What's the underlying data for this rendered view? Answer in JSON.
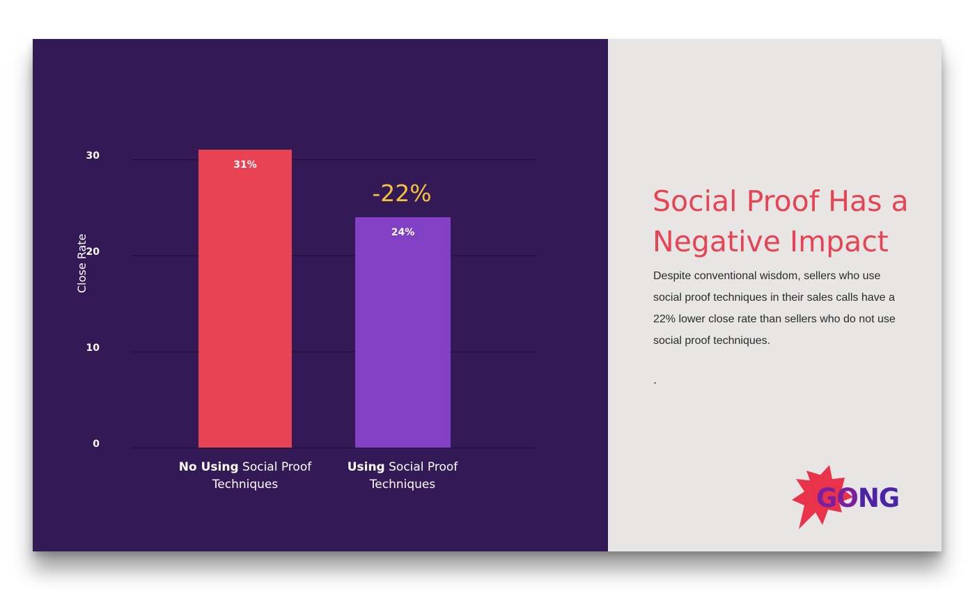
{
  "chart_data": {
    "type": "bar",
    "categories": [
      {
        "bold": "No Using",
        "rest": "Social Proof",
        "line2": "Techniques"
      },
      {
        "bold": "Using",
        "rest": "Social Proof",
        "line2": "Techniques"
      }
    ],
    "values": [
      31,
      24
    ],
    "value_labels": [
      "31%",
      "24%"
    ],
    "colors": [
      "#e74352",
      "#8240c4"
    ],
    "ylabel": "Close Rate",
    "ylim": [
      0,
      30
    ],
    "yticks": [
      "0",
      "10",
      "20",
      "30"
    ],
    "annotation": "-22%",
    "annotation_color": "#f5c33b",
    "grid": true,
    "legend": "none"
  },
  "panel": {
    "title_line1": "Social Proof Has a",
    "title_line2": "Negative Impact",
    "description": "Despite conventional wisdom, sellers who use social proof techniques in their sales calls have a 22% lower close rate than sellers who do not use social proof techniques.",
    "trailing": "."
  },
  "logo": {
    "part1": "GO",
    "part2": "NG",
    "color1": "#7a1fa2",
    "color2": "#4b22a8",
    "burst_color": "#e8334a"
  },
  "colors": {
    "chart_background": "#331a57",
    "panel_background": "#e7e6e4",
    "title": "#e74352"
  }
}
